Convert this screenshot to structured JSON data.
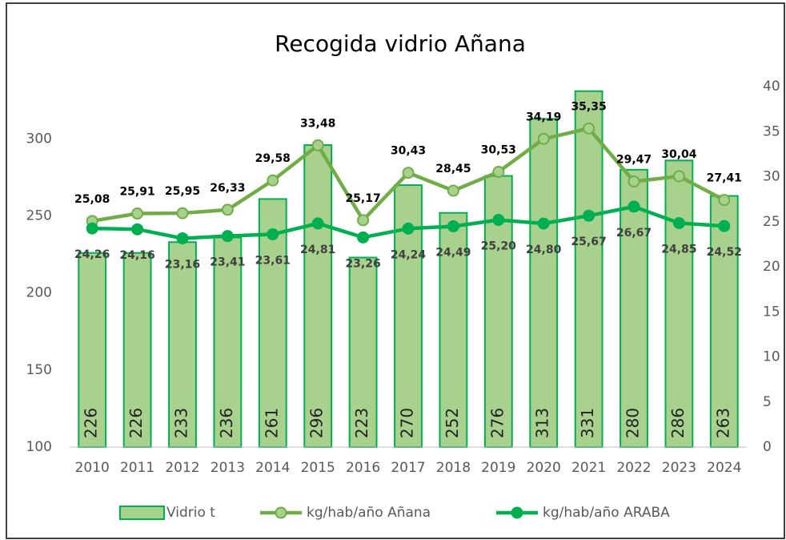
{
  "chart_data": {
    "type": "bar-line",
    "title": "Recogida vidrio Añana",
    "categories": [
      "2010",
      "2011",
      "2012",
      "2013",
      "2014",
      "2015",
      "2016",
      "2017",
      "2018",
      "2019",
      "2020",
      "2021",
      "2022",
      "2023",
      "2024"
    ],
    "ylim": [
      100,
      334
    ],
    "yticks": [
      100,
      150,
      200,
      250,
      300
    ],
    "y2lim": [
      0,
      40
    ],
    "y2ticks": [
      0,
      5,
      10,
      15,
      20,
      25,
      30,
      35,
      40
    ],
    "series": [
      {
        "name": "Vidrio t",
        "type": "bar",
        "axis": "y",
        "color": "#a9d18e",
        "edge": "#00b050",
        "values": [
          226,
          226,
          233,
          236,
          261,
          296,
          223,
          270,
          252,
          276,
          313,
          331,
          280,
          286,
          263
        ]
      },
      {
        "name": "kg/hab/año Añana",
        "type": "line",
        "axis": "y2",
        "color": "#70ad47",
        "marker": "#a9d18e",
        "values": [
          25.08,
          25.91,
          25.95,
          26.33,
          29.58,
          33.48,
          25.17,
          30.43,
          28.45,
          30.53,
          34.19,
          35.35,
          29.47,
          30.04,
          27.41
        ],
        "value_labels": [
          "25,08",
          "25,91",
          "25,95",
          "26,33",
          "29,58",
          "33,48",
          "25,17",
          "30,43",
          "28,45",
          "30,53",
          "34,19",
          "35,35",
          "29,47",
          "30,04",
          "27,41"
        ]
      },
      {
        "name": "kg/hab/año ARABA",
        "type": "line",
        "axis": "y2",
        "color": "#00b050",
        "marker": "#00b050",
        "values": [
          24.26,
          24.16,
          23.16,
          23.41,
          23.61,
          24.81,
          23.26,
          24.24,
          24.49,
          25.2,
          24.8,
          25.67,
          26.67,
          24.85,
          24.52
        ],
        "value_labels": [
          "24,26",
          "24,16",
          "23,16",
          "23,41",
          "23,61",
          "24,81",
          "23,26",
          "24,24",
          "24,49",
          "25,20",
          "24,80",
          "25,67",
          "26,67",
          "24,85",
          "24,52"
        ]
      }
    ]
  }
}
